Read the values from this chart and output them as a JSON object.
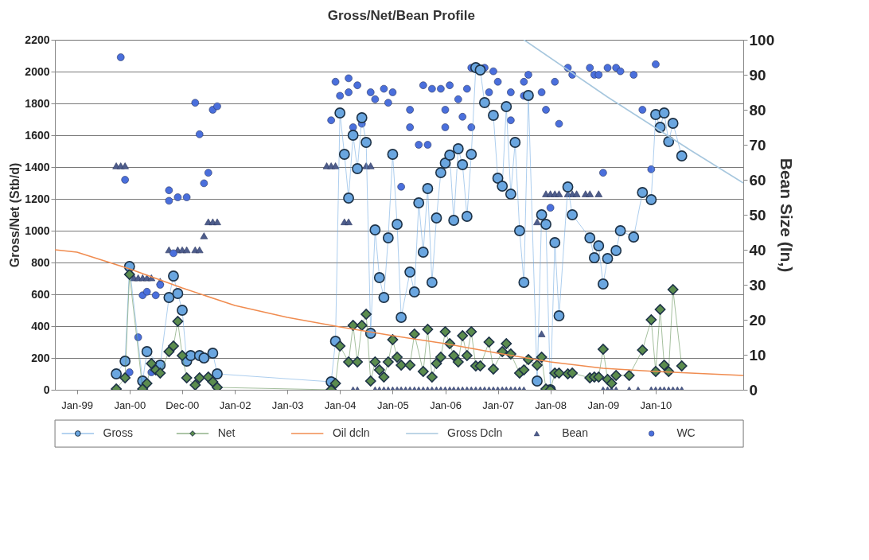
{
  "chart_data": {
    "type": "line",
    "title": "Gross/Net/Bean Profile",
    "ylabel": "Gross/Net (Stb/d)",
    "y2label": "Bean Size (In,)",
    "xlim": [
      "1998-08-01",
      "2011-09-01"
    ],
    "xticks": [
      {
        "value": "1999-01-01",
        "label": "Jan-99"
      },
      {
        "value": "2000-01-01",
        "label": "Jan-00"
      },
      {
        "value": "2000-12-31",
        "label": "Dec-00"
      },
      {
        "value": "2002-01-01",
        "label": "Jan-02"
      },
      {
        "value": "2003-01-01",
        "label": "Jan-03"
      },
      {
        "value": "2004-01-01",
        "label": "Jan-04"
      },
      {
        "value": "2005-01-01",
        "label": "Jan-05"
      },
      {
        "value": "2006-01-01",
        "label": "Jan-06"
      },
      {
        "value": "2007-01-01",
        "label": "Jan-07"
      },
      {
        "value": "2008-01-01",
        "label": "Jan-08"
      },
      {
        "value": "2009-01-01",
        "label": "Jan-09"
      },
      {
        "value": "2010-01-01",
        "label": "Jan-10"
      }
    ],
    "ylim": [
      0,
      2200
    ],
    "yticks": [
      0,
      200,
      400,
      600,
      800,
      1000,
      1200,
      1400,
      1600,
      1800,
      2000,
      2200
    ],
    "y2lim": [
      0,
      100
    ],
    "y2ticks": [
      0,
      10,
      20,
      30,
      40,
      50,
      60,
      70,
      80,
      90,
      100
    ],
    "grid": "y",
    "legend": "bottom",
    "series": [
      {
        "name": "Gross",
        "marker": "circle",
        "color": "#6aa6e0",
        "x": [
          "1999-10",
          "1999-12",
          "2000-01",
          "2000-04",
          "2000-05",
          "2000-08",
          "2000-10",
          "2000-11",
          "2000-12",
          "2001-01",
          "2001-02",
          "2001-03",
          "2001-05",
          "2001-06",
          "2001-08",
          "2001-09",
          "2003-11",
          "2003-12",
          "2004-01",
          "2004-02",
          "2004-03",
          "2004-04",
          "2004-05",
          "2004-06",
          "2004-07",
          "2004-08",
          "2004-09",
          "2004-10",
          "2004-11",
          "2004-12",
          "2005-01",
          "2005-02",
          "2005-03",
          "2005-05",
          "2005-06",
          "2005-07",
          "2005-08",
          "2005-09",
          "2005-10",
          "2005-11",
          "2005-12",
          "2006-01",
          "2006-02",
          "2006-03",
          "2006-04",
          "2006-05",
          "2006-06",
          "2006-07",
          "2006-08",
          "2006-09",
          "2006-10",
          "2006-12",
          "2007-01",
          "2007-02",
          "2007-03",
          "2007-04",
          "2007-05",
          "2007-06",
          "2007-07",
          "2007-08",
          "2007-10",
          "2007-11",
          "2007-12",
          "2008-01",
          "2008-02",
          "2008-03",
          "2008-05",
          "2008-06",
          "2008-10",
          "2008-11",
          "2008-12",
          "2009-01",
          "2009-02",
          "2009-04",
          "2009-05",
          "2009-08",
          "2009-10",
          "2009-12",
          "2010-01",
          "2010-02",
          "2010-03",
          "2010-04",
          "2010-05",
          "2010-07"
        ],
        "values": [
          100,
          180,
          775,
          55,
          240,
          155,
          580,
          715,
          605,
          500,
          180,
          215,
          215,
          200,
          230,
          100,
          50,
          305,
          1740,
          1480,
          1205,
          1600,
          1390,
          1710,
          1555,
          355,
          1005,
          705,
          580,
          955,
          1480,
          1040,
          455,
          740,
          615,
          1175,
          865,
          1265,
          675,
          1080,
          1365,
          1425,
          1475,
          1065,
          1515,
          1415,
          1090,
          1480,
          2025,
          2010,
          1805,
          1725,
          1330,
          1280,
          1780,
          1230,
          1555,
          1000,
          675,
          1850,
          55,
          1100,
          1040,
          0,
          925,
          465,
          1275,
          1100,
          955,
          830,
          905,
          665,
          825,
          875,
          1000,
          960,
          1240,
          1195,
          1730,
          1650,
          1740,
          1560,
          1675,
          1470
        ]
      },
      {
        "name": "Net",
        "marker": "diamond",
        "color": "#5b8c4e",
        "x": [
          "1999-10",
          "1999-12",
          "2000-01",
          "2000-04",
          "2000-05",
          "2000-06",
          "2000-07",
          "2000-08",
          "2000-10",
          "2000-11",
          "2000-12",
          "2001-01",
          "2001-02",
          "2001-04",
          "2001-05",
          "2001-07",
          "2001-08",
          "2001-09",
          "2003-11",
          "2003-12",
          "2004-01",
          "2004-03",
          "2004-04",
          "2004-05",
          "2004-06",
          "2004-07",
          "2004-08",
          "2004-09",
          "2004-10",
          "2004-11",
          "2004-12",
          "2005-01",
          "2005-02",
          "2005-03",
          "2005-05",
          "2005-06",
          "2005-08",
          "2005-09",
          "2005-10",
          "2005-11",
          "2005-12",
          "2006-01",
          "2006-02",
          "2006-03",
          "2006-04",
          "2006-05",
          "2006-06",
          "2006-07",
          "2006-08",
          "2006-09",
          "2006-11",
          "2006-12",
          "2007-02",
          "2007-03",
          "2007-04",
          "2007-06",
          "2007-07",
          "2007-08",
          "2007-10",
          "2007-11",
          "2007-12",
          "2008-01",
          "2008-02",
          "2008-03",
          "2008-05",
          "2008-06",
          "2008-10",
          "2008-11",
          "2008-12",
          "2009-01",
          "2009-02",
          "2009-03",
          "2009-04",
          "2009-07",
          "2009-10",
          "2009-12",
          "2010-01",
          "2010-02",
          "2010-03",
          "2010-04",
          "2010-05",
          "2010-07"
        ],
        "values": [
          5,
          75,
          725,
          5,
          40,
          165,
          125,
          105,
          240,
          275,
          430,
          215,
          75,
          30,
          75,
          80,
          50,
          15,
          0,
          40,
          275,
          175,
          405,
          175,
          405,
          475,
          55,
          175,
          125,
          80,
          175,
          315,
          205,
          155,
          155,
          350,
          115,
          380,
          80,
          165,
          205,
          365,
          290,
          215,
          175,
          340,
          215,
          365,
          150,
          150,
          300,
          130,
          240,
          290,
          225,
          105,
          125,
          190,
          155,
          205,
          5,
          0,
          105,
          105,
          100,
          105,
          75,
          80,
          80,
          255,
          65,
          40,
          90,
          90,
          250,
          440,
          115,
          505,
          155,
          115,
          630,
          150
        ]
      },
      {
        "name": "Oil dcln",
        "marker": "none",
        "color": "#f08c50",
        "x": [
          "1998-08",
          "1999-01",
          "2000-01",
          "2001-01",
          "2002-01",
          "2003-01",
          "2004-01",
          "2005-01",
          "2006-01",
          "2007-01",
          "2008-01",
          "2009-01",
          "2010-01",
          "2011-01",
          "2011-09"
        ],
        "values": [
          880,
          865,
          760,
          640,
          530,
          455,
          395,
          340,
          290,
          230,
          175,
          135,
          115,
          100,
          90
        ]
      },
      {
        "name": "Gross Dcln",
        "marker": "none",
        "color": "#a7c7de",
        "x": [
          "2007-07",
          "2009-02",
          "2010-09",
          "2011-09"
        ],
        "values": [
          2200,
          1840,
          1505,
          1300
        ]
      },
      {
        "name": "Bean",
        "type": "scatter",
        "marker": "triangle",
        "axis": "y2",
        "color": "#4e5d8c",
        "x": [
          "1999-10",
          "1999-11",
          "1999-12",
          "2000-02",
          "2000-03",
          "2000-04",
          "2000-05",
          "2000-06",
          "2000-08",
          "2000-10",
          "2000-12",
          "2001-01",
          "2001-02",
          "2001-04",
          "2001-05",
          "2001-06",
          "2001-07",
          "2001-08",
          "2001-09",
          "2003-10",
          "2003-11",
          "2003-12",
          "2004-02",
          "2004-03",
          "2004-04",
          "2004-05",
          "2004-07",
          "2004-08",
          "2004-09",
          "2004-10",
          "2004-11",
          "2004-12",
          "2005-01",
          "2005-02",
          "2005-03",
          "2005-04",
          "2005-05",
          "2005-06",
          "2005-07",
          "2005-08",
          "2005-09",
          "2005-10",
          "2005-11",
          "2005-12",
          "2006-01",
          "2006-02",
          "2006-03",
          "2006-04",
          "2006-05",
          "2006-06",
          "2006-07",
          "2006-08",
          "2006-09",
          "2006-10",
          "2006-11",
          "2006-12",
          "2007-01",
          "2007-02",
          "2007-03",
          "2007-04",
          "2007-05",
          "2007-06",
          "2007-07",
          "2007-10",
          "2007-11",
          "2007-12",
          "2008-01",
          "2008-02",
          "2008-03",
          "2008-05",
          "2008-06",
          "2008-07",
          "2008-09",
          "2008-10",
          "2008-12",
          "2009-01",
          "2009-02",
          "2009-03",
          "2009-04",
          "2009-07",
          "2009-09",
          "2009-12",
          "2010-01",
          "2010-02",
          "2010-03",
          "2010-04",
          "2010-05",
          "2010-06",
          "2010-07"
        ],
        "values": [
          64,
          64,
          64,
          32,
          32,
          32,
          32,
          32,
          31,
          40,
          40,
          40,
          40,
          40,
          40,
          44,
          48,
          48,
          48,
          64,
          64,
          64,
          48,
          48,
          0,
          0,
          64,
          64,
          0,
          0,
          0,
          0,
          0,
          0,
          0,
          0,
          0,
          0,
          0,
          0,
          0,
          0,
          0,
          0,
          0,
          0,
          0,
          0,
          0,
          0,
          0,
          0,
          0,
          0,
          0,
          0,
          0,
          0,
          0,
          0,
          0,
          0,
          0,
          48,
          16,
          56,
          56,
          56,
          56,
          56,
          56,
          56,
          56,
          56,
          56,
          0,
          0,
          0,
          0,
          0,
          0,
          0,
          0,
          0,
          0,
          0,
          0,
          0,
          0
        ]
      },
      {
        "name": "WC",
        "type": "scatter",
        "marker": "circle",
        "axis": "y2",
        "color": "#4a6fdc",
        "x": [
          "1999-11",
          "1999-12",
          "2000-01",
          "2000-03",
          "2000-04",
          "2000-05",
          "2000-06",
          "2000-07",
          "2000-08",
          "2000-10",
          "2000-10",
          "2000-11",
          "2000-12",
          "2001-02",
          "2001-04",
          "2001-05",
          "2001-06",
          "2001-07",
          "2001-08",
          "2001-09",
          "2003-11",
          "2003-12",
          "2004-01",
          "2004-03",
          "2004-03",
          "2004-05",
          "2004-04",
          "2004-06",
          "2004-08",
          "2004-09",
          "2004-11",
          "2004-12",
          "2005-01",
          "2005-05",
          "2005-05",
          "2005-07",
          "2005-09",
          "2005-03",
          "2005-08",
          "2005-10",
          "2005-12",
          "2006-02",
          "2006-04",
          "2006-01",
          "2006-05",
          "2006-07",
          "2006-01",
          "2006-06",
          "2006-07",
          "2006-10",
          "2006-12",
          "2007-01",
          "2006-11",
          "2007-04",
          "2007-04",
          "2007-07",
          "2007-07",
          "2007-08",
          "2007-11",
          "2007-12",
          "2008-02",
          "2008-03",
          "2008-01",
          "2008-05",
          "2008-06",
          "2008-10",
          "2008-11",
          "2008-12",
          "2009-02",
          "2009-04",
          "2009-05",
          "2009-08",
          "2010-01",
          "2009-10",
          "2009-01",
          "2009-12"
        ],
        "values": [
          95,
          60,
          5,
          15,
          27,
          28,
          5,
          27,
          30,
          57,
          54,
          39,
          55,
          55,
          82,
          73,
          59,
          62,
          80,
          81,
          77,
          88,
          84,
          89,
          85,
          87,
          75,
          76,
          85,
          83,
          86,
          82,
          85,
          80,
          75,
          70,
          70,
          58,
          87,
          86,
          86,
          87,
          83,
          80,
          78,
          75,
          75,
          86,
          92,
          92,
          91,
          88,
          85,
          85,
          77,
          84,
          88,
          90,
          85,
          80,
          88,
          76,
          52,
          92,
          90,
          92,
          90,
          90,
          92,
          92,
          91,
          90,
          93,
          80,
          62,
          63
        ]
      }
    ]
  }
}
